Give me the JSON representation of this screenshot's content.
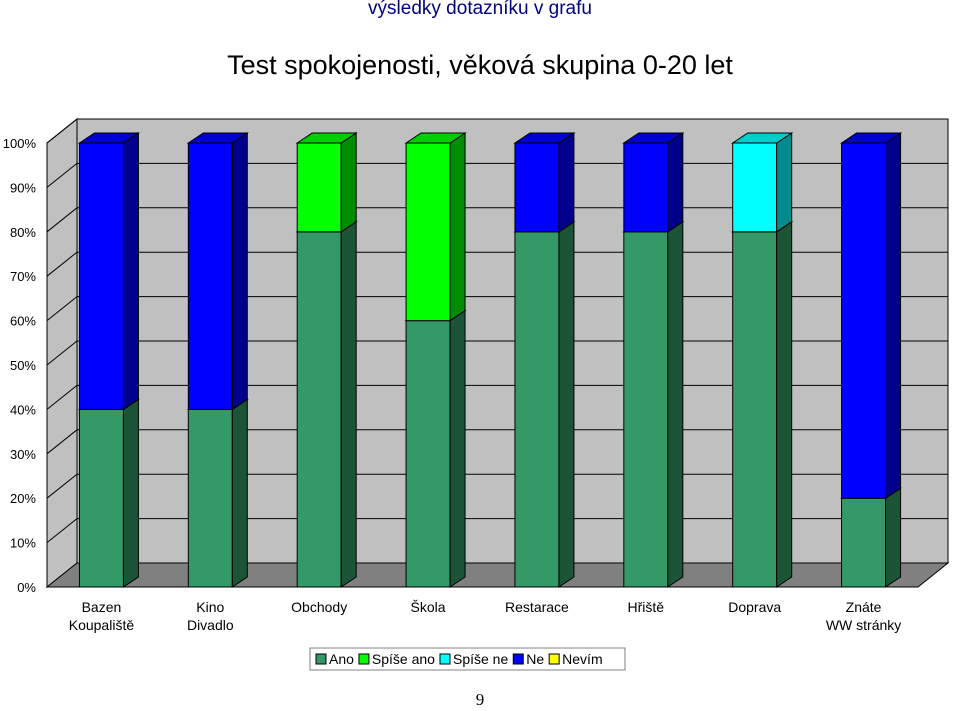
{
  "slide": {
    "heading": "výsledky dotazníku v grafu",
    "title": "Test spokojenosti, věková skupina 0-20 let",
    "page_number": "9"
  },
  "chart_data": {
    "type": "bar",
    "stacked": true,
    "three_d": true,
    "title": "",
    "xlabel": "",
    "ylabel": "",
    "ylim": [
      0,
      100
    ],
    "y_ticks": [
      "0%",
      "10%",
      "20%",
      "30%",
      "40%",
      "50%",
      "60%",
      "70%",
      "80%",
      "90%",
      "100%"
    ],
    "grid": true,
    "legend_position": "bottom",
    "categories": [
      [
        "Bazen",
        "Koupaliště"
      ],
      [
        "Kino",
        "Divadlo"
      ],
      [
        "Obchody"
      ],
      [
        "Škola"
      ],
      [
        "Restarace"
      ],
      [
        "Hřiště"
      ],
      [
        "Doprava"
      ],
      [
        "Znáte",
        "WW stránky"
      ]
    ],
    "series": [
      {
        "name": "Ano",
        "color": "#339966",
        "values": [
          40,
          40,
          80,
          60,
          80,
          80,
          80,
          20
        ]
      },
      {
        "name": "Spíše ano",
        "color": "#00ff00",
        "values": [
          0,
          0,
          20,
          40,
          0,
          0,
          0,
          0
        ]
      },
      {
        "name": "Spíše ne",
        "color": "#00ffff",
        "values": [
          0,
          0,
          0,
          0,
          0,
          0,
          20,
          0
        ]
      },
      {
        "name": "Ne",
        "color": "#0000ff",
        "values": [
          60,
          60,
          0,
          0,
          20,
          20,
          0,
          80
        ]
      },
      {
        "name": "Nevím",
        "color": "#ffff00",
        "values": [
          0,
          0,
          0,
          0,
          0,
          0,
          0,
          0
        ]
      }
    ]
  }
}
